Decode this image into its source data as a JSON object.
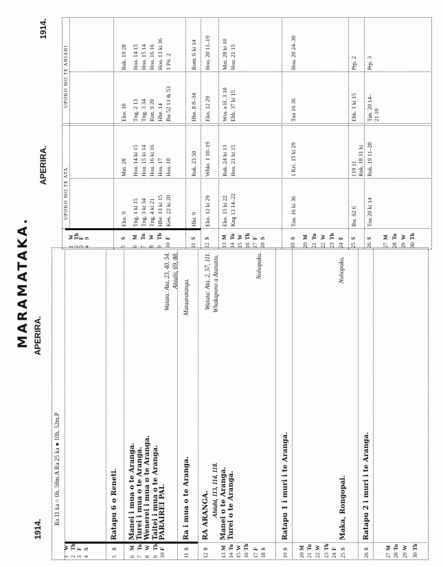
{
  "title": "MARAMATAKA.",
  "left_page": {
    "year": "1914.",
    "month": "APERIRA.",
    "moon_phases": "Ra 11 ka ○ 0h. 58m.A    Ra 25 ka ● 10h. 52m.P",
    "days": [
      {
        "n": "1",
        "d": "W",
        "text": ""
      },
      {
        "n": "2",
        "d": "Th",
        "text": ""
      },
      {
        "n": "3",
        "d": "F",
        "text": ""
      },
      {
        "n": "4",
        "d": "S",
        "text": ""
      },
      {
        "n": "5",
        "d": "S",
        "text": "Ratapu 6 o Reneti."
      },
      {
        "n": "6",
        "d": "M",
        "text": "Manei i mua o te Aranga."
      },
      {
        "n": "7",
        "d": "Tu",
        "text": "Turei i mua o te Aranga."
      },
      {
        "n": "8",
        "d": "W",
        "text": "Wenerei i mua o te Aranga."
      },
      {
        "n": "9",
        "d": "Th",
        "text": "Taitei i mua o te Aranga."
      },
      {
        "n": "10",
        "d": "F",
        "text": "PARAIREI PAI."
      },
      {
        "n": "11",
        "d": "S",
        "text": "Ra i mua o te Aranga."
      },
      {
        "n": "12",
        "d": "S",
        "text": "RA ARANGA."
      },
      {
        "n": "13",
        "d": "M",
        "text": "Manei o te Aranga."
      },
      {
        "n": "14",
        "d": "Tu",
        "text": "Turei o te Aranga."
      },
      {
        "n": "15",
        "d": "W",
        "text": ""
      },
      {
        "n": "16",
        "d": "Th",
        "text": ""
      },
      {
        "n": "17",
        "d": "F",
        "text": ""
      },
      {
        "n": "18",
        "d": "S",
        "text": ""
      },
      {
        "n": "19",
        "d": "S",
        "text": "Ratapu 1 i muri i te Aranga."
      },
      {
        "n": "20",
        "d": "M",
        "text": ""
      },
      {
        "n": "21",
        "d": "Tu",
        "text": ""
      },
      {
        "n": "22",
        "d": "W",
        "text": ""
      },
      {
        "n": "23",
        "d": "Th",
        "text": ""
      },
      {
        "n": "24",
        "d": "F",
        "text": ""
      },
      {
        "n": "25",
        "d": "S",
        "text": "Maka, Rongopai."
      },
      {
        "n": "26",
        "d": "S",
        "text": "Ratapu 2 i muri i te Aranga."
      },
      {
        "n": "27",
        "d": "M",
        "text": ""
      },
      {
        "n": "28",
        "d": "Tu",
        "text": ""
      },
      {
        "n": "29",
        "d": "W",
        "text": ""
      },
      {
        "n": "30",
        "d": "Th",
        "text": ""
      }
    ],
    "extra_line": "Ahiahi, 113, 114, 118.",
    "notes": [
      "Waiata: Ata, 23, 40, 54.",
      "Ahiahi, 69, 88.",
      "Mataaratanga.",
      "Waiata: Ata, 2, 57, 111.",
      "Whakapono a Atanatiu.",
      "Nohopuku.",
      "Nohopuku."
    ]
  },
  "right_page": {
    "year": "1914.",
    "month": "APERIRA.",
    "headers": {
      "ata": "UPOKO MO TE ATA.",
      "ahiahi": "UPOKO MO TE AHIAHI."
    },
    "days": [
      {
        "n": "1",
        "d": "W",
        "cells": [
          "",
          "",
          "",
          ""
        ]
      },
      {
        "n": "2",
        "d": "Th",
        "cells": [
          "",
          "",
          "",
          ""
        ]
      },
      {
        "n": "3",
        "d": "F",
        "cells": [
          "",
          "",
          "",
          ""
        ]
      },
      {
        "n": "4",
        "d": "S",
        "cells": [
          "",
          "",
          "",
          ""
        ]
      },
      {
        "n": "5",
        "d": "S",
        "cells": [
          "Eko. 9",
          "Mat. 28",
          "Eko. 10",
          "Ruk. 19 28"
        ]
      },
      {
        "n": "6",
        "d": "M",
        "cells": [
          "Tng. 1 ki 15",
          "Hoa. 14 ki 15",
          "Tng. 2 13",
          "Hoa. 14 15"
        ]
      },
      {
        "n": "7",
        "d": "Tu",
        "cells": [
          "Tng. 3 ki 34",
          "Hoa. 15 ki 14",
          "Tng. 3 34",
          "Hoa. 15 14"
        ]
      },
      {
        "n": "8",
        "d": "W",
        "cells": [
          "Tng. 4 ki 21",
          "Hoa. 16 ki 16",
          "Ran. 9 20",
          "Hoa. 16 16"
        ]
      },
      {
        "n": "9",
        "d": "Th",
        "cells": [
          "Hhe. 13 ki 15",
          "Hoa. 17",
          "Hhe. 14",
          "Hoa. 13 ki 36"
        ]
      },
      {
        "n": "10",
        "d": "F",
        "cells": [
          "Ken. 22 ki 20",
          "Hoa. 18",
          "Iha 52 13 & 53",
          "1 Pit. 2"
        ]
      },
      {
        "n": "11",
        "d": "S",
        "cells": [
          "Hkr. 9",
          "Ruk. 23 50",
          "Hhe. 8 8–34",
          "Rom. 6 ki 14"
        ]
      },
      {
        "n": "12",
        "d": "S",
        "cells": [
          "Eko. 12 ki 29",
          "Whkt. 1 10–19",
          "Eko. 12 29",
          "Hoa. 20 11–19"
        ]
      },
      {
        "n": "13",
        "d": "M",
        "cells": [
          "Eko. 15 ki 22",
          "Ruk. 24 ki 13",
          "Wta. a H. 3 10",
          "Mat. 28 ki 10"
        ]
      },
      {
        "n": "14",
        "d": "Tu",
        "cells": [
          "Kng 13 14–22",
          "Hoa. 21 ki 15",
          "Ehk. 37 ki 15",
          "Hoa. 21 15"
        ]
      },
      {
        "n": "15",
        "d": "W",
        "cells": [
          "",
          "",
          "",
          ""
        ]
      },
      {
        "n": "16",
        "d": "Th",
        "cells": [
          "",
          "",
          "",
          ""
        ]
      },
      {
        "n": "17",
        "d": "F",
        "cells": [
          "",
          "",
          "",
          ""
        ]
      },
      {
        "n": "18",
        "d": "S",
        "cells": [
          "",
          "",
          "",
          ""
        ]
      },
      {
        "n": "19",
        "d": "S",
        "cells": [
          "Tau. 16 ki 36",
          "1 Kri. 15 ki 29",
          "Tau 16 36",
          "Hoa. 20 24–30"
        ]
      },
      {
        "n": "20",
        "d": "M",
        "cells": [
          "",
          "",
          "",
          ""
        ]
      },
      {
        "n": "21",
        "d": "Tu",
        "cells": [
          "",
          "",
          "",
          ""
        ]
      },
      {
        "n": "22",
        "d": "W",
        "cells": [
          "",
          "",
          "",
          ""
        ]
      },
      {
        "n": "23",
        "d": "Th",
        "cells": [
          "",
          "",
          "",
          ""
        ]
      },
      {
        "n": "24",
        "d": "F",
        "cells": [
          "",
          "",
          "",
          ""
        ]
      },
      {
        "n": "25",
        "d": "S",
        "cells": [
          "Iha. 62 6",
          "{19 11\nRuk. 18 31 ki",
          "Ehk. 1 ki 15",
          "Prp. 2"
        ]
      },
      {
        "n": "26",
        "d": "S",
        "cells": [
          "Tau 20 ki 14",
          "Ruk. 19 11–28",
          "Tan. 20 14–\n21 10",
          "Prp. 3"
        ]
      },
      {
        "n": "27",
        "d": "M",
        "cells": [
          "",
          "",
          "",
          ""
        ]
      },
      {
        "n": "28",
        "d": "Tu",
        "cells": [
          "",
          "",
          "",
          ""
        ]
      },
      {
        "n": "29",
        "d": "W",
        "cells": [
          "",
          "",
          "",
          ""
        ]
      },
      {
        "n": "30",
        "d": "Th",
        "cells": [
          "",
          "",
          "",
          ""
        ]
      }
    ]
  }
}
